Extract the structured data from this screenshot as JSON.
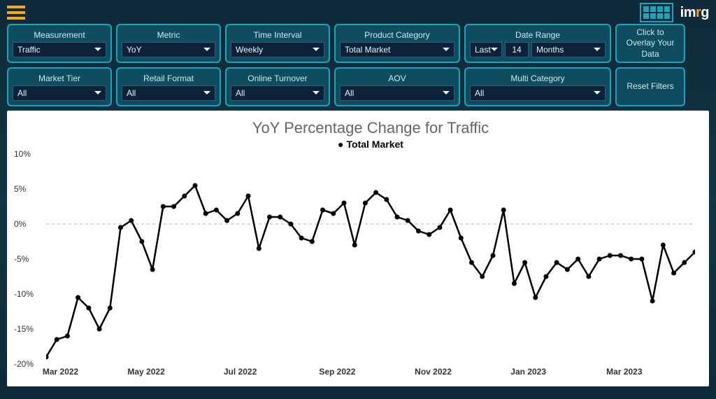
{
  "header": {
    "logo": "imrg"
  },
  "filters": {
    "measurement": {
      "label": "Measurement",
      "value": "Traffic"
    },
    "metric": {
      "label": "Metric",
      "value": "YoY"
    },
    "interval": {
      "label": "Time Interval",
      "value": "Weekly"
    },
    "category": {
      "label": "Product Category",
      "value": "Total Market"
    },
    "daterange": {
      "label": "Date Range",
      "mode": "Last",
      "count": "14",
      "unit": "Months"
    },
    "overlay": {
      "label": "Click to Overlay Your Data"
    },
    "tier": {
      "label": "Market Tier",
      "value": "All"
    },
    "format": {
      "label": "Retail Format",
      "value": "All"
    },
    "turnover": {
      "label": "Online Turnover",
      "value": "All"
    },
    "aov": {
      "label": "AOV",
      "value": "All"
    },
    "multicat": {
      "label": "Multi Category",
      "value": "All"
    },
    "reset": {
      "label": "Reset Filters"
    }
  },
  "chart": {
    "type": "line",
    "title": "YoY Percentage Change for Traffic",
    "legend": "Total Market",
    "title_fontsize": 22,
    "title_color": "#666666",
    "legend_fontsize": 14,
    "background_color": "#ffffff",
    "line_color": "#000000",
    "line_width": 2.5,
    "marker": "circle",
    "marker_size": 3.5,
    "grid_color": "#cccccc",
    "zero_line_dash": "4 4",
    "axis_color": "#333333",
    "axis_fontsize": 12,
    "ylim": [
      -20,
      10
    ],
    "yticks": [
      -20,
      -15,
      -10,
      -5,
      0,
      5,
      10
    ],
    "ytick_labels": [
      "-20%",
      "-15%",
      "-10%",
      "-5%",
      "0%",
      "5%",
      "10%"
    ],
    "x_major_ticks": [
      0,
      8,
      17,
      26,
      35,
      44,
      53
    ],
    "x_major_labels": [
      "Mar 2022",
      "May 2022",
      "Jul 2022",
      "Sep 2022",
      "Nov 2022",
      "Jan 2023",
      "Mar 2023"
    ],
    "n_points": 62,
    "values": [
      -19.0,
      -16.5,
      -16.0,
      -10.5,
      -12.0,
      -15.0,
      -12.0,
      -0.5,
      0.5,
      -2.5,
      -6.5,
      2.5,
      2.5,
      4.0,
      5.5,
      1.5,
      2.0,
      0.5,
      1.5,
      4.0,
      -3.5,
      1.0,
      1.0,
      0.0,
      -2.0,
      -2.5,
      2.0,
      1.5,
      3.0,
      -3.0,
      3.0,
      4.5,
      3.5,
      1.0,
      0.5,
      -1.0,
      -1.5,
      -0.5,
      2.0,
      -2.0,
      -5.5,
      -7.5,
      -4.5,
      2.0,
      -8.5,
      -5.5,
      -10.5,
      -7.5,
      -5.5,
      -6.5,
      -5.0,
      -7.5,
      -5.0,
      -4.5,
      -4.5,
      -5.0,
      -5.0,
      -11.0,
      -3.0,
      -7.0,
      -5.5,
      -4.0
    ]
  },
  "colors": {
    "bg": "#0f2a3a",
    "panel_border": "#1fa3b8",
    "panel_fill": "#0e4d60",
    "dropdown_fill": "#0b2238",
    "accent": "#f5a623"
  }
}
